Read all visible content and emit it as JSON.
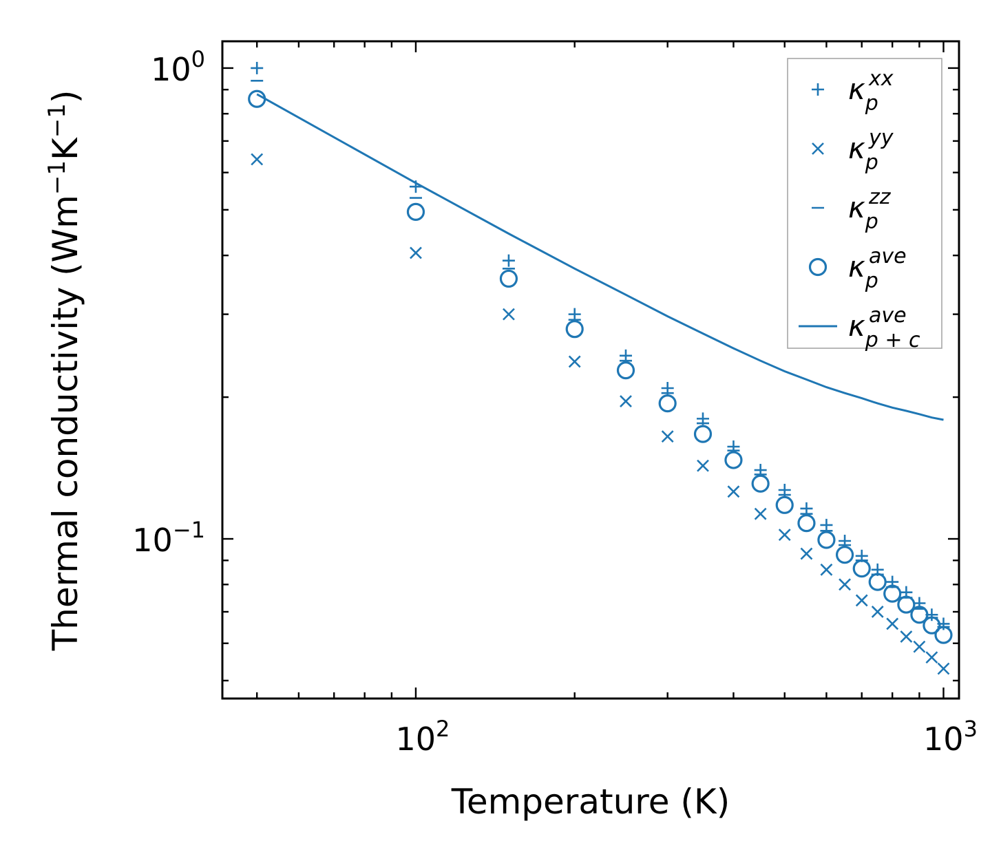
{
  "chart_data": {
    "type": "scatter",
    "xscale": "log",
    "yscale": "log",
    "xlabel": "Temperature (K)",
    "ylabel": {
      "main": "Thermal conductivity (Wm",
      "exp1": "−1",
      "mid": "K",
      "exp2": "−1",
      "end": ")"
    },
    "xlim": [
      43,
      1070
    ],
    "ylim": [
      0.0458,
      1.14
    ],
    "xticks": [
      {
        "value": 100,
        "base": "10",
        "exp": "2"
      },
      {
        "value": 1000,
        "base": "10",
        "exp": "3"
      }
    ],
    "yticks": [
      {
        "value": 0.1,
        "base": "10",
        "exp": "−1"
      },
      {
        "value": 1.0,
        "base": "10",
        "exp": "0"
      }
    ],
    "x": [
      50,
      100,
      150,
      200,
      250,
      300,
      350,
      400,
      450,
      500,
      550,
      600,
      650,
      700,
      750,
      800,
      850,
      900,
      950,
      1000
    ],
    "series": [
      {
        "name": "kappa_xx",
        "label": "κ",
        "sub": "p",
        "sup": "xx",
        "marker": "plus",
        "values": [
          1.0,
          0.56,
          0.39,
          0.3,
          0.245,
          0.209,
          0.18,
          0.157,
          0.14,
          0.127,
          0.116,
          0.107,
          0.099,
          0.092,
          0.086,
          0.081,
          0.077,
          0.073,
          0.069,
          0.066
        ]
      },
      {
        "name": "kappa_yy",
        "label": "κ",
        "sub": "p",
        "sup": "yy",
        "marker": "x",
        "values": [
          0.64,
          0.405,
          0.3,
          0.238,
          0.196,
          0.165,
          0.143,
          0.126,
          0.113,
          0.102,
          0.093,
          0.086,
          0.08,
          0.074,
          0.07,
          0.066,
          0.062,
          0.059,
          0.056,
          0.053
        ]
      },
      {
        "name": "kappa_zz",
        "label": "κ",
        "sub": "p",
        "sup": "zz",
        "marker": "dash",
        "values": [
          0.94,
          0.53,
          0.375,
          0.292,
          0.239,
          0.204,
          0.176,
          0.154,
          0.137,
          0.124,
          0.113,
          0.104,
          0.097,
          0.09,
          0.084,
          0.079,
          0.075,
          0.071,
          0.068,
          0.065
        ]
      },
      {
        "name": "kappa_ave",
        "label": "κ",
        "sub": "p",
        "sup": "ave",
        "marker": "circle",
        "values": [
          0.86,
          0.495,
          0.357,
          0.279,
          0.228,
          0.194,
          0.167,
          0.147,
          0.131,
          0.118,
          0.108,
          0.0995,
          0.0925,
          0.0865,
          0.081,
          0.0765,
          0.0725,
          0.069,
          0.0655,
          0.0625
        ]
      },
      {
        "name": "kappa_ave_pc",
        "label": "κ",
        "sub": "p + c",
        "sup": "ave",
        "marker": "line",
        "values": [
          0.88,
          0.57,
          0.445,
          0.375,
          0.33,
          0.297,
          0.273,
          0.254,
          0.239,
          0.227,
          0.218,
          0.21,
          0.204,
          0.199,
          0.194,
          0.19,
          0.187,
          0.184,
          0.181,
          0.179
        ]
      }
    ],
    "legend_position": "top-right",
    "color": "#1f77b4"
  }
}
